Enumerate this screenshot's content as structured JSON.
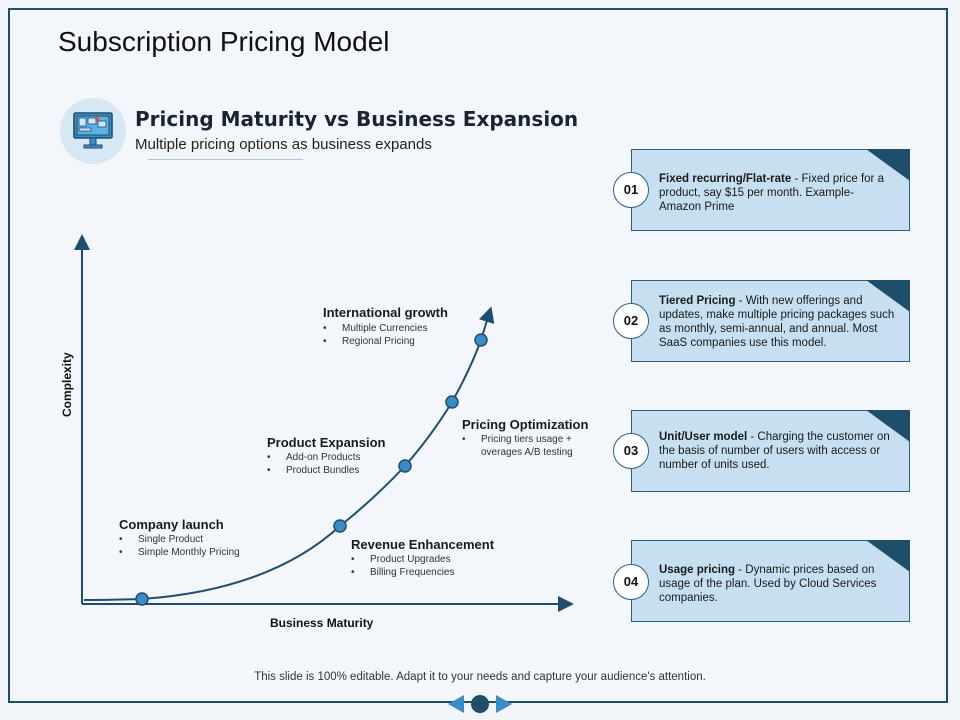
{
  "slide": {
    "title": "Subscription Pricing Model",
    "subtitle": "Pricing Maturity vs Business Expansion",
    "description": "Multiple pricing options as business expands",
    "footer": "This slide is 100% editable. Adapt it to your needs and capture your audience's attention."
  },
  "axes": {
    "y_label": "Complexity",
    "x_label": "Business Maturity"
  },
  "stages": [
    {
      "title": "Company launch",
      "bullets": [
        "Single Product",
        "Simple Monthly Pricing"
      ]
    },
    {
      "title": "Revenue Enhancement",
      "bullets": [
        "Product Upgrades",
        "Billing Frequencies"
      ]
    },
    {
      "title": "Product Expansion",
      "bullets": [
        "Add-on Products",
        "Product Bundles"
      ]
    },
    {
      "title": "Pricing Optimization",
      "bullets": [
        "Pricing tiers usage +",
        "overages A/B testing"
      ]
    },
    {
      "title": "International growth",
      "bullets": [
        "Multiple Currencies",
        "Regional Pricing"
      ]
    }
  ],
  "models": [
    {
      "number": "01",
      "name": "Fixed recurring/Flat-rate",
      "text": " - Fixed price for a product, say $15 per month. Example- Amazon Prime"
    },
    {
      "number": "02",
      "name": "Tiered Pricing",
      "text": " - With new offerings and updates, make multiple pricing packages such as monthly, semi-annual, and annual. Most SaaS companies use this model."
    },
    {
      "number": "03",
      "name": "Unit/User model",
      "text": " - Charging the customer on the basis of number of users with access or number of units used."
    },
    {
      "number": "04",
      "name": "Usage pricing",
      "text": " - Dynamic prices based on usage of the plan. Used by Cloud Services companies."
    }
  ],
  "colors": {
    "navy": "#1f4e6b",
    "card_fill": "#c6e0f2",
    "marker": "#3a8cc8",
    "curve": "#1e4d6e"
  },
  "icons": {
    "header": "monitor-icon",
    "prev": "arrow-left-icon",
    "next": "arrow-right-icon"
  }
}
